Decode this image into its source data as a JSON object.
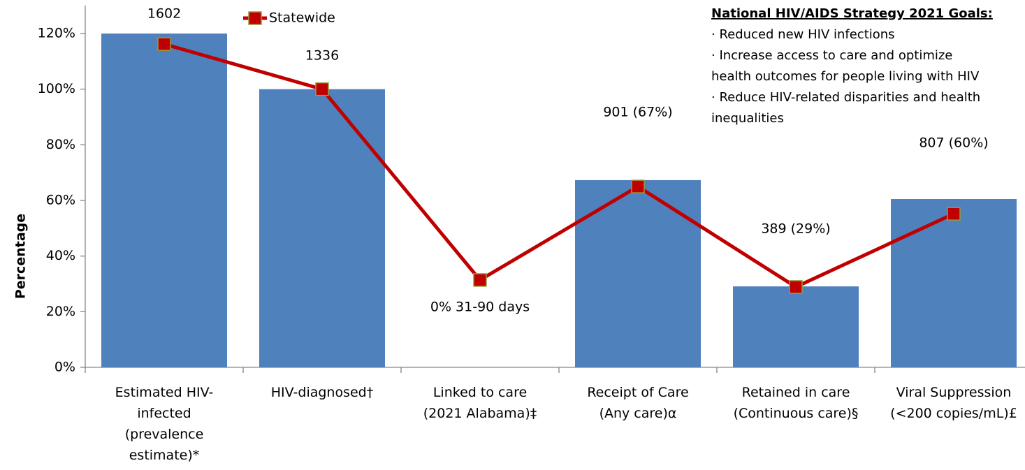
{
  "chart_data": {
    "type": "bar_line",
    "y_label": "Percentage",
    "categories": [
      "Estimated HIV-infected (prevalence estimate)*",
      "HIV-diagnosed†",
      "Linked to care (2021 Alabama)‡",
      "Receipt of Care (Any care)α",
      "Retained in care (Continuous care)§",
      "Viral Suppression (<200 copies/mL)£"
    ],
    "category_lines": [
      [
        "Estimated HIV-",
        "infected",
        "(prevalence",
        "estimate)*"
      ],
      [
        "HIV-diagnosed†"
      ],
      [
        "Linked to care",
        "(2021 Alabama)‡"
      ],
      [
        "Receipt of Care",
        "(Any care)α"
      ],
      [
        "Retained in care",
        "(Continuous care)§"
      ],
      [
        "Viral Suppression",
        "(<200 copies/mL)£"
      ]
    ],
    "bars": {
      "color": "#4f81bd",
      "values": [
        120,
        100,
        0,
        67.3,
        29.1,
        60.5
      ]
    },
    "bar_annotations": [
      "1602",
      "1336",
      "0% 31-90 days",
      "901 (67%)",
      "389 (29%)",
      "807 (60%)"
    ],
    "series": [
      {
        "name": "Statewide",
        "color": "#c00000",
        "marker_edge": "#9c9a3c",
        "values": [
          116.2,
          100,
          31.4,
          65,
          28.9,
          55.2
        ]
      }
    ],
    "ylim": [
      0,
      120
    ],
    "yticks": [
      {
        "value": 0,
        "label": "0%"
      },
      {
        "value": 20,
        "label": "20%"
      },
      {
        "value": 40,
        "label": "40%"
      },
      {
        "value": 60,
        "label": "60%"
      },
      {
        "value": 80,
        "label": "80%"
      },
      {
        "value": 100,
        "label": "100%"
      },
      {
        "value": 120,
        "label": "120%"
      }
    ],
    "goals_box": {
      "title": "National HIV/AIDS Strategy 2021 Goals:",
      "lines": [
        "· Reduced new HIV infections",
        "· Increase access to care and optimize",
        "health outcomes for people living with HIV",
        "· Reduce HIV-related disparities and health",
        "inequalities"
      ]
    }
  }
}
